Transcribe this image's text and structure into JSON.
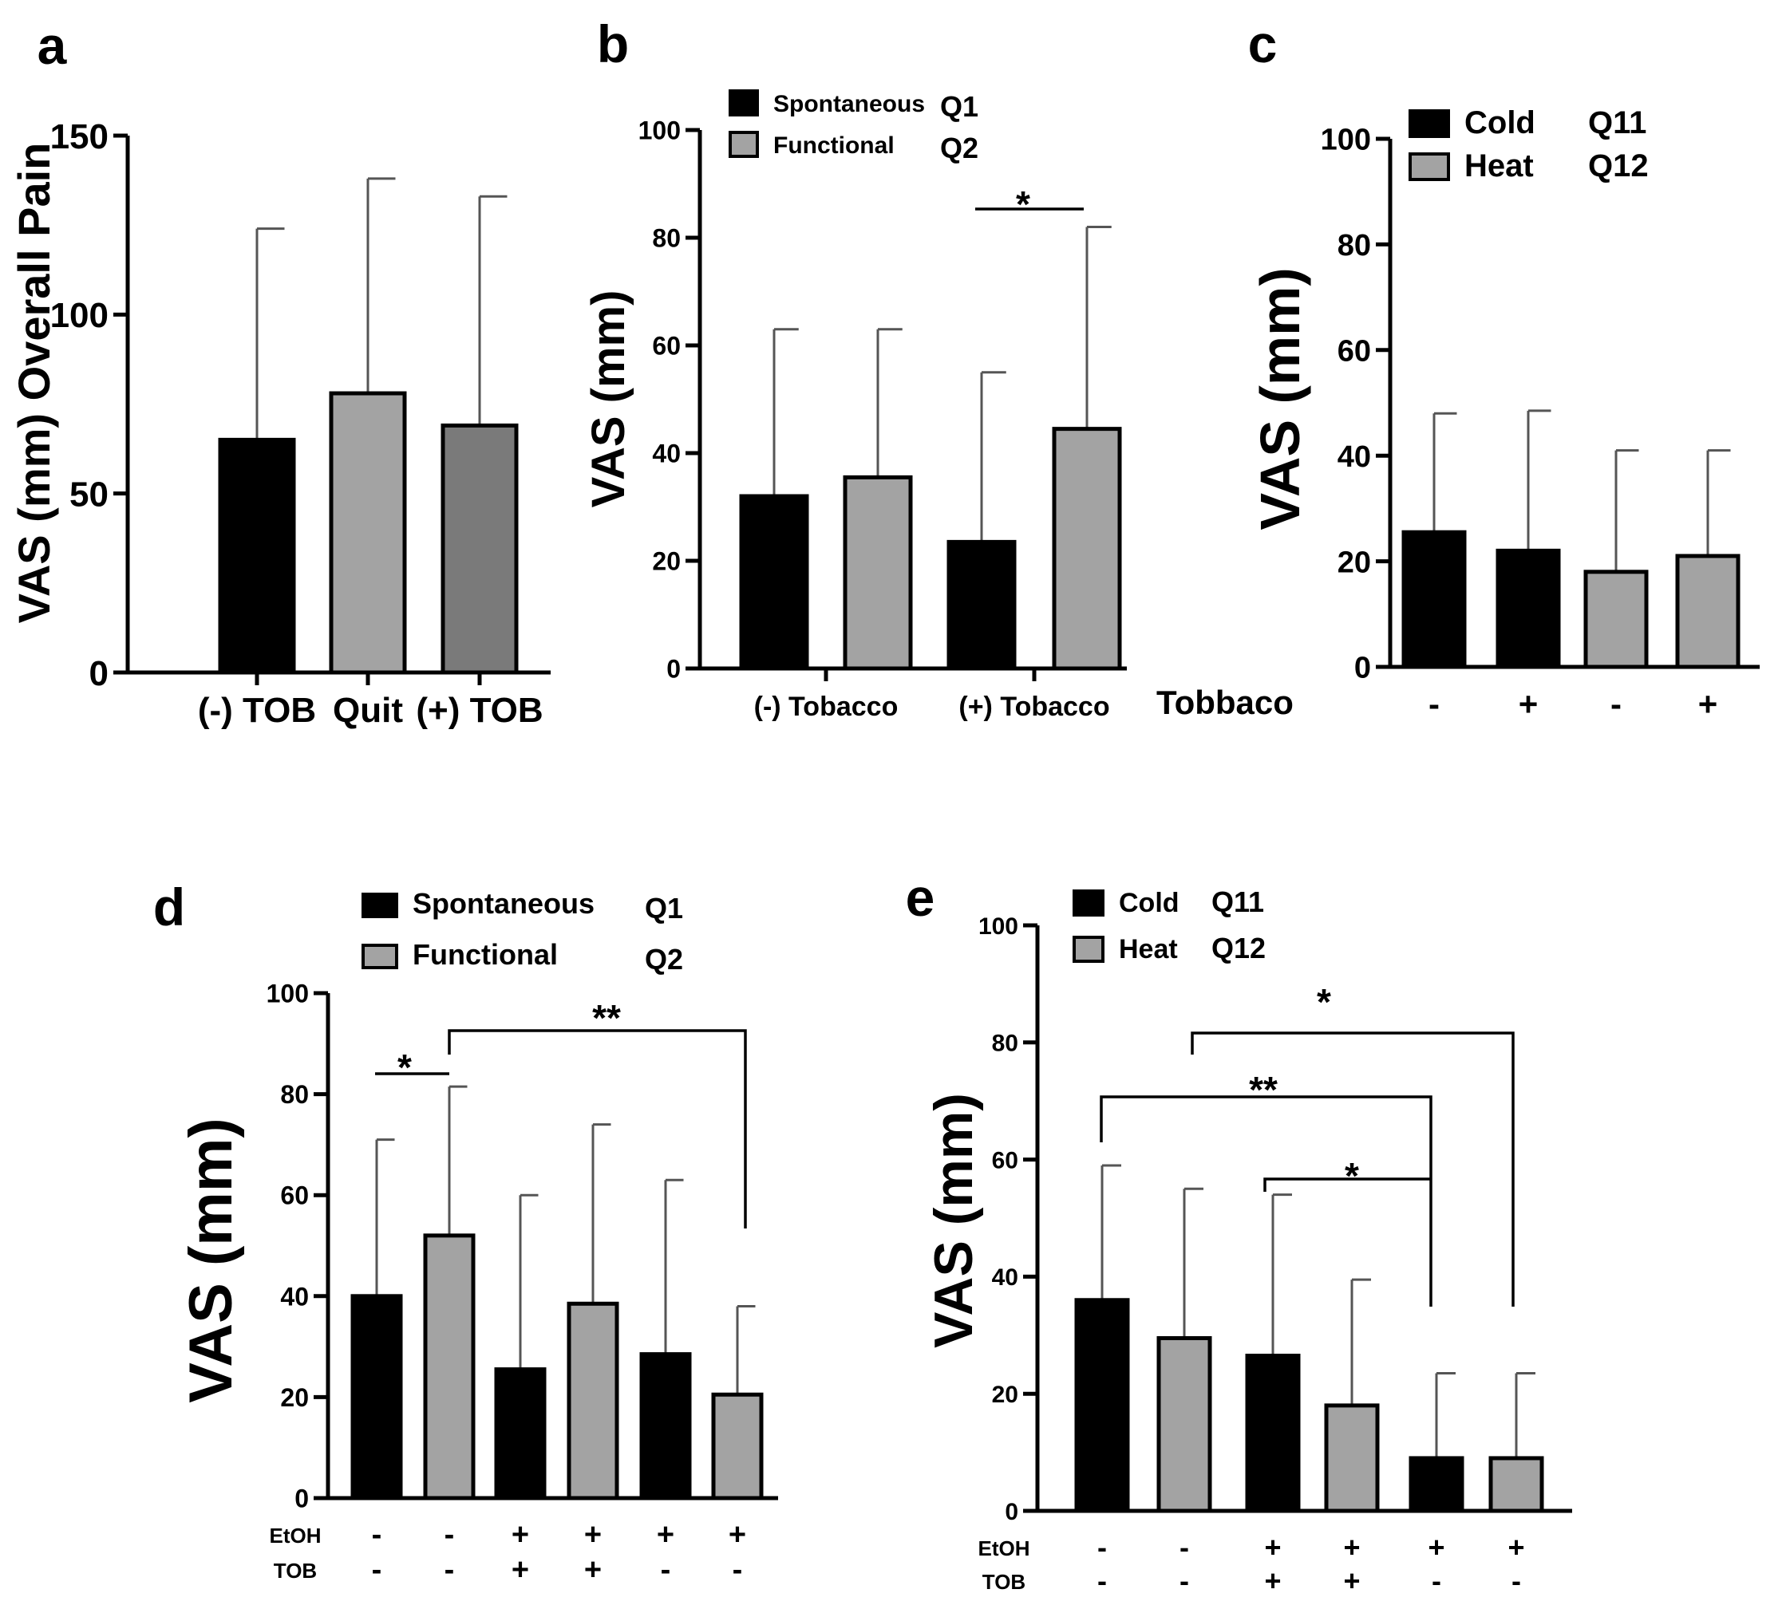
{
  "colors": {
    "black": "#000000",
    "gray": "#a3a3a3",
    "darkgray": "#7a7a7a",
    "error": "#555555"
  },
  "chart_data": [
    {
      "id": "a",
      "panel_label": "a",
      "type": "bar",
      "ylabel": "VAS (mm) Overall Pain",
      "ylim": [
        0,
        150
      ],
      "yticks": [
        0,
        50,
        100,
        150
      ],
      "categories": [
        "(-) TOB",
        "Quit",
        "(+) TOB"
      ],
      "values": [
        65,
        78,
        69
      ],
      "errors": [
        59,
        60,
        64
      ],
      "colors": [
        "black",
        "gray",
        "darkgray"
      ],
      "legend": []
    },
    {
      "id": "b",
      "panel_label": "b",
      "type": "bar",
      "ylabel": "VAS (mm)",
      "ylim": [
        0,
        100
      ],
      "yticks": [
        0,
        20,
        40,
        60,
        80,
        100
      ],
      "group_labels": [
        "(-) Tobacco",
        "(+) Tobacco"
      ],
      "values": [
        32,
        35.5,
        23.5,
        44.5
      ],
      "errors": [
        31,
        27.5,
        31.5,
        37.5
      ],
      "colors": [
        "black",
        "gray",
        "black",
        "gray"
      ],
      "legend": [
        {
          "label": "Spontaneous",
          "q": "Q1",
          "color": "black"
        },
        {
          "label": "Functional",
          "q": "Q2",
          "color": "gray"
        }
      ],
      "annotations": [
        {
          "text": "*",
          "from": 2,
          "to": 3
        }
      ]
    },
    {
      "id": "c",
      "panel_label": "c",
      "type": "bar",
      "ylabel": "VAS (mm)",
      "ylim": [
        0,
        100
      ],
      "yticks": [
        0,
        20,
        40,
        60,
        80,
        100
      ],
      "row_labels": [
        {
          "name": "Tobbaco",
          "values": [
            "-",
            "+",
            "-",
            "+"
          ]
        }
      ],
      "values": [
        25.5,
        22,
        18,
        21
      ],
      "errors": [
        22.5,
        26.5,
        23,
        20
      ],
      "colors": [
        "black",
        "black",
        "gray",
        "gray"
      ],
      "legend": [
        {
          "label": "Cold",
          "q": "Q11",
          "color": "black"
        },
        {
          "label": "Heat",
          "q": "Q12",
          "color": "gray"
        }
      ]
    },
    {
      "id": "d",
      "panel_label": "d",
      "type": "bar",
      "ylabel": "VAS (mm)",
      "ylim": [
        0,
        100
      ],
      "yticks": [
        0,
        20,
        40,
        60,
        80,
        100
      ],
      "row_labels": [
        {
          "name": "EtOH",
          "values": [
            "-",
            "-",
            "+",
            "+",
            "+",
            "+"
          ]
        },
        {
          "name": "TOB",
          "values": [
            "-",
            "-",
            "+",
            "+",
            "-",
            "-"
          ]
        }
      ],
      "values": [
        40,
        52,
        25.5,
        38.5,
        28.5,
        20.5
      ],
      "errors": [
        31,
        29.5,
        34.5,
        35.5,
        34.5,
        17.5
      ],
      "colors": [
        "black",
        "gray",
        "black",
        "gray",
        "black",
        "gray"
      ],
      "legend": [
        {
          "label": "Spontaneous",
          "q": "Q1",
          "color": "black"
        },
        {
          "label": "Functional",
          "q": "Q2",
          "color": "gray"
        }
      ],
      "annotations": [
        {
          "text": "*",
          "from": 0,
          "to": 1
        },
        {
          "text": "**",
          "from": 1,
          "to": 5
        }
      ]
    },
    {
      "id": "e",
      "panel_label": "e",
      "type": "bar",
      "ylabel": "VAS (mm)",
      "ylim": [
        0,
        100
      ],
      "yticks": [
        0,
        20,
        40,
        60,
        80,
        100
      ],
      "row_labels": [
        {
          "name": "EtOH",
          "values": [
            "-",
            "-",
            "+",
            "+",
            "+",
            "+"
          ]
        },
        {
          "name": "TOB",
          "values": [
            "-",
            "-",
            "+",
            "+",
            "-",
            "-"
          ]
        }
      ],
      "values": [
        36,
        29.5,
        26.5,
        18,
        9,
        9
      ],
      "errors": [
        23,
        25.5,
        27.5,
        21.5,
        14.5,
        14.5
      ],
      "colors": [
        "black",
        "gray",
        "black",
        "gray",
        "black",
        "gray"
      ],
      "legend": [
        {
          "label": "Cold",
          "q": "Q11",
          "color": "black"
        },
        {
          "label": "Heat",
          "q": "Q12",
          "color": "gray"
        }
      ],
      "annotations": [
        {
          "text": "*",
          "from": 1,
          "to": 5
        },
        {
          "text": "**",
          "from": 0,
          "to": 4
        },
        {
          "text": "*",
          "from": 2,
          "to": 4
        }
      ]
    }
  ]
}
